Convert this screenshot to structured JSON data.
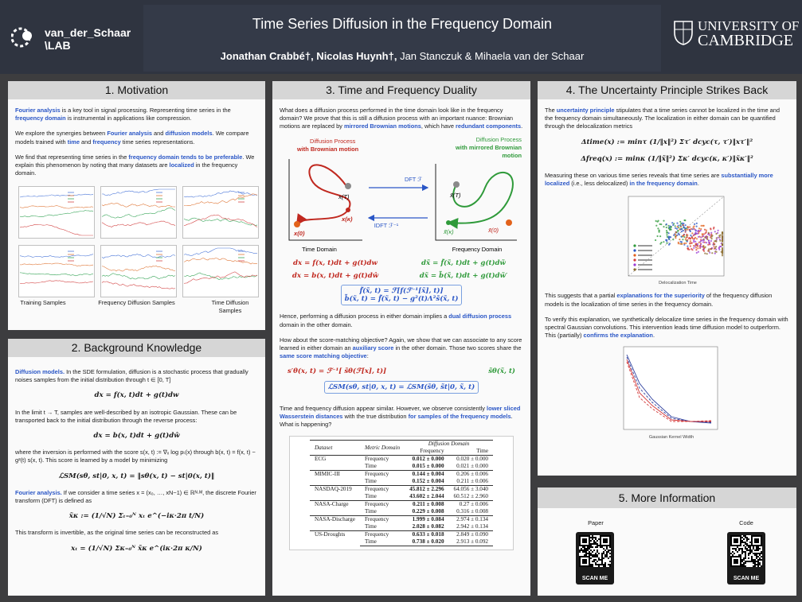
{
  "header": {
    "lab": "van_der_Schaar",
    "lab_sub": "\\LAB",
    "title": "Time Series Diffusion in the Frequency Domain",
    "authors": [
      {
        "text": "Jonathan Crabbé†, Nicolas Huynh†,",
        "style": "bold"
      },
      {
        "text": " Jan Stanczuk & Mihaela van der Schaar"
      }
    ],
    "university": [
      "UNIVERSITY OF",
      "CAMBRIDGE"
    ]
  },
  "motivation": {
    "title": "1. Motivation",
    "content": [
      {
        "runs": [
          {
            "text": "Fourier analysis",
            "style": "blue"
          },
          {
            "text": " is a key tool in signal processing. Representing time series in the "
          },
          {
            "text": "frequency domain",
            "style": "blue"
          },
          {
            "text": " is instrumental in applications like compression."
          }
        ]
      },
      {
        "runs": [
          {
            "text": "We explore the synergies between "
          },
          {
            "text": "Fourier analysis",
            "style": "blue"
          },
          {
            "text": " and "
          },
          {
            "text": "diffusion models",
            "style": "blue"
          },
          {
            "text": ". We compare models trained with "
          },
          {
            "text": "time",
            "style": "blue"
          },
          {
            "text": " and "
          },
          {
            "text": "frequency",
            "style": "blue"
          },
          {
            "text": " time series representations."
          }
        ]
      },
      {
        "runs": [
          {
            "text": "We find that representing time series in the "
          },
          {
            "text": "frequency domain tends to be preferable",
            "style": "blue"
          },
          {
            "text": ". We explain this phenomenon by noting that many datasets are "
          },
          {
            "text": "localized",
            "style": "blue"
          },
          {
            "text": " in the frequency domain."
          }
        ]
      }
    ],
    "captions": [
      "Training Samples",
      "Frequency Diffusion Samples",
      "Time Diffusion Samples"
    ]
  },
  "background": {
    "title": "2. Background Knowledge",
    "content": [
      {
        "runs": [
          {
            "text": "Diffusion models.",
            "style": "blue"
          },
          {
            "text": " In the SDE formulation, diffusion is a stochastic process that gradually noises samples from the initial distribution through t ∈ [0, T]"
          }
        ]
      },
      {
        "equation": "dx = f(x, t)dt + g(t)dw"
      },
      {
        "runs": [
          {
            "text": "In the limit t → T, samples are well-described by an isotropic Gaussian. These can be transported back to the initial distribution through the reverse process:"
          }
        ]
      },
      {
        "equation": "dx = b(x, t)dt + g(t)dŵ"
      },
      {
        "runs": [
          {
            "text": "where the inversion is performed with the score s(x, t) := ∇ₓ log pₜ(x) through b(x, t) = f(x, t) − g²(t) s(x, t). This score is learned by a model by minimizing"
          }
        ]
      },
      {
        "equation": "ℒSM(sθ, st|0, x, t) = ‖sθ(x, t) − st|0(x, t)‖"
      },
      {
        "runs": [
          {
            "text": "Fourier analysis.",
            "style": "blue"
          },
          {
            "text": " If we consider a time series x = (x₀, …, xN−1) ∈ ℝᴺ·ᴹ, the discrete Fourier transform (DFT) is defined as"
          }
        ]
      },
      {
        "equation": "x̃κ := (1/√N) Σₜ₌₀ᴺ xₜ e^(−iκ·2π t/N)"
      },
      {
        "runs": [
          {
            "text": "This transform is invertible, as the original time series can be reconstructed as"
          }
        ]
      },
      {
        "equation": "xₜ = (1/√N) Σκ₌₀ᴺ x̃κ e^(iκ·2π κ/N)"
      }
    ]
  },
  "duality": {
    "title": "3. Time and Frequency Duality",
    "intro": [
      {
        "text": "What does a diffusion process performed in the time domain look like in the frequency domain? We prove that this is still a diffusion process with an important nuance: Brownian motions are replaced by "
      },
      {
        "text": "mirrored Brownian motions",
        "style": "blue"
      },
      {
        "text": ", which have "
      },
      {
        "text": "redundant components",
        "style": "blue"
      },
      {
        "text": "."
      }
    ],
    "diagram": {
      "time_label": [
        "Diffusion Process",
        "with Brownian motion"
      ],
      "freq_label": [
        "Diffusion Process",
        "with mirrored Brownian",
        "motion"
      ],
      "time_points": [
        "x(T)",
        "x(κ)",
        "x(0)"
      ],
      "freq_points": [
        "x̃(T)",
        "x̃(κ)",
        "x̃(0)"
      ],
      "dft": "DFT ℱ",
      "idft": "IDFT ℱ⁻¹",
      "time_domain": "Time Domain",
      "freq_domain": "Frequency Domain"
    },
    "equations": {
      "time": [
        "dx = f(x, t)dt + g(t)dw",
        "dx = b(x, t)dt + g(t)dŵ"
      ],
      "freq": [
        "dx̃ = f̃(x̃, t)dt + g(t)dw̃",
        "dx̃ = b̃(x̃, t)dt + g(t)dw̃′"
      ],
      "boxed": [
        "f̃(x̃, t) = ℱ[f(ℱ⁻¹[x̃], t)]",
        "b̃(x̃, t) = f̃(x̃, t) − g²(t)Λ²s̃(x̃, t)"
      ]
    },
    "content": [
      {
        "runs": [
          {
            "text": "Hence, performing a diffusion process in either domain implies a "
          },
          {
            "text": "dual diffusion process",
            "style": "blue"
          },
          {
            "text": " domain in the other domain."
          }
        ]
      },
      {
        "runs": [
          {
            "text": "How about the score-matching objective?  Again, we show that we can associate to any score learned in either domain an "
          },
          {
            "text": "auxiliary score",
            "style": "blue"
          },
          {
            "text": " in the other domain. Those two scores share the "
          },
          {
            "text": "same score matching objective",
            "style": "blue"
          },
          {
            "text": ":"
          }
        ]
      }
    ],
    "score": {
      "time": "s′θ(x, t) = ℱ⁻¹[ s̃θ(ℱ[x], t)]",
      "freq": "s̃θ(x̃, t)",
      "loss": "ℒSM(sθ, st|0, x, t) = ℒSM(s̃θ, s̃t|0, x̃, t)"
    },
    "closing": [
      {
        "text": "Time and frequency diffusion appear similar. However, we observe consistently "
      },
      {
        "text": "lower sliced Wasserstein distances",
        "style": "blue"
      },
      {
        "text": " with the true distribution "
      },
      {
        "text": "for samples of the frequency models",
        "style": "blue"
      },
      {
        "text": ". What is happening?"
      }
    ],
    "table": {
      "columns": [
        "Dataset",
        "Metric Domain",
        "Diffusion Domain"
      ],
      "subcolumns": [
        "Frequency",
        "Time"
      ],
      "groups": [
        {
          "dataset": "ECG",
          "rows": [
            [
              "Frequency",
              "0.012 ± 0.000",
              "0.020 ± 0.000"
            ],
            [
              "Time",
              "0.015 ± 0.000",
              "0.021 ± 0.000"
            ]
          ]
        },
        {
          "dataset": "MIMIC-III",
          "rows": [
            [
              "Frequency",
              "0.144 ± 0.004",
              "0.206 ± 0.006"
            ],
            [
              "Time",
              "0.152 ± 0.004",
              "0.211 ± 0.006"
            ]
          ]
        },
        {
          "dataset": "NASDAQ-2019",
          "rows": [
            [
              "Frequency",
              "45.812 ± 2.296",
              "64.056 ± 3.040"
            ],
            [
              "Time",
              "43.602 ± 2.044",
              "60.512 ± 2.960"
            ]
          ]
        },
        {
          "dataset": "NASA-Charge",
          "rows": [
            [
              "Frequency",
              "0.211 ± 0.008",
              "0.27 ± 0.006"
            ],
            [
              "Time",
              "0.229 ± 0.008",
              "0.316 ± 0.008"
            ]
          ]
        },
        {
          "dataset": "NASA-Discharge",
          "rows": [
            [
              "Frequency",
              "1.999 ± 0.084",
              "2.974 ± 0.134"
            ],
            [
              "Time",
              "2.028 ± 0.082",
              "2.942 ± 0.134"
            ]
          ]
        },
        {
          "dataset": "US-Droughts",
          "rows": [
            [
              "Frequency",
              "0.633 ± 0.018",
              "2.849 ± 0.090"
            ],
            [
              "Time",
              "0.738 ± 0.020",
              "2.913 ± 0.092"
            ]
          ]
        }
      ]
    }
  },
  "uncertainty": {
    "title": "4. The Uncertainty Principle Strikes Back",
    "content_a": [
      {
        "runs": [
          {
            "text": "The "
          },
          {
            "text": "uncertainty principle",
            "style": "blue"
          },
          {
            "text": " stipulates that a time series cannot be localized in the time and the frequency domain simultaneously. The localization in either domain can be quantified through the delocalization metrics"
          }
        ]
      },
      {
        "equation": "Δtime(x) := minτ (1/‖x‖²) Στ′ dcyc(τ, τ′)‖xτ′‖²"
      },
      {
        "equation": "Δfreq(x) := minκ (1/‖x̃‖²) Σκ′ dcyc(κ, κ′)‖x̃κ′‖²"
      },
      {
        "runs": [
          {
            "text": "Measuring these on various time series reveals that time series are "
          },
          {
            "text": "substantially more localized",
            "style": "blue"
          },
          {
            "text": " (i.e., less delocalized) "
          },
          {
            "text": "in the frequency domain",
            "style": "blue"
          },
          {
            "text": "."
          }
        ]
      }
    ],
    "scatter_xlabel": "Delocalization Time",
    "content_b": [
      {
        "runs": [
          {
            "text": "This suggests that a partial "
          },
          {
            "text": "explanations for the superiority",
            "style": "blue"
          },
          {
            "text": " of the frequency diffusion models is the localization of time series in the frequency domain."
          }
        ]
      },
      {
        "runs": [
          {
            "text": "To verify this explanation, we synthetically delocalize time series in the frequency domain with spectral Gaussian convolutions. This intervention leads time diffusion model to outperform. This (partially) "
          },
          {
            "text": "confirms the explanation",
            "style": "blue"
          },
          {
            "text": "."
          }
        ]
      }
    ],
    "line_xlabel": "Gaussian Kernel Width",
    "line_legend": [
      "Domain",
      "Time",
      "Frequency"
    ]
  },
  "more_info": {
    "title": "5. More Information",
    "links": [
      {
        "label": "Paper",
        "scan": "SCAN ME"
      },
      {
        "label": "Code",
        "scan": "SCAN ME"
      }
    ]
  }
}
